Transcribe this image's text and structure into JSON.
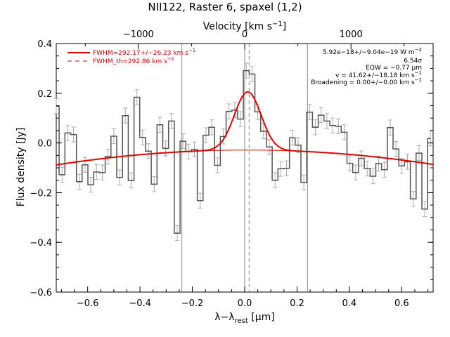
{
  "chart_data": {
    "type": "line",
    "title": "NII122, Raster 6, spaxel (1,2)",
    "xlabel_main": "λ−λ",
    "xlabel_sub": "rest",
    "xlabel_unit": " [μm]",
    "ylabel": "Flux density [Jy]",
    "top_axis_label_main": "Velocity [km s",
    "top_axis_label_sup": "−1",
    "top_axis_label_end": "]",
    "xlim": [
      -0.72,
      0.72
    ],
    "ylim": [
      -0.6,
      0.4
    ],
    "x_ticks": [
      {
        "v": -0.6,
        "label": "−0.6"
      },
      {
        "v": -0.4,
        "label": "−0.4"
      },
      {
        "v": -0.2,
        "label": "−0.2"
      },
      {
        "v": 0.0,
        "label": "0.0"
      },
      {
        "v": 0.2,
        "label": "0.2"
      },
      {
        "v": 0.4,
        "label": "0.4"
      },
      {
        "v": 0.6,
        "label": "0.6"
      }
    ],
    "y_ticks": [
      {
        "v": -0.6,
        "label": "−0.6"
      },
      {
        "v": -0.4,
        "label": "−0.4"
      },
      {
        "v": -0.2,
        "label": "−0.2"
      },
      {
        "v": 0.0,
        "label": "0.0"
      },
      {
        "v": 0.2,
        "label": "0.2"
      },
      {
        "v": 0.4,
        "label": "0.4"
      }
    ],
    "top_ticks": [
      {
        "v": -1000,
        "label": "−1000"
      },
      {
        "v": 0,
        "label": "0"
      },
      {
        "v": 1000,
        "label": "1000"
      }
    ],
    "velocity_per_um": 2462,
    "vertical_lines": [
      -0.24,
      0.0,
      0.24
    ],
    "line_center_dashed": 0.017,
    "spectrum": {
      "x": [
        -0.72,
        -0.698,
        -0.676,
        -0.654,
        -0.632,
        -0.61,
        -0.588,
        -0.566,
        -0.544,
        -0.522,
        -0.5,
        -0.478,
        -0.456,
        -0.434,
        -0.412,
        -0.39,
        -0.368,
        -0.346,
        -0.324,
        -0.302,
        -0.28,
        -0.258,
        -0.236,
        -0.214,
        -0.192,
        -0.17,
        -0.148,
        -0.126,
        -0.104,
        -0.082,
        -0.06,
        -0.038,
        -0.016,
        0.006,
        0.028,
        0.05,
        0.072,
        0.094,
        0.116,
        0.138,
        0.16,
        0.182,
        0.204,
        0.226,
        0.248,
        0.27,
        0.292,
        0.314,
        0.336,
        0.358,
        0.38,
        0.402,
        0.424,
        0.446,
        0.468,
        0.49,
        0.512,
        0.534,
        0.556,
        0.578,
        0.6,
        0.622,
        0.644,
        0.666,
        0.688,
        0.71
      ],
      "y": [
        0.148,
        -0.128,
        0.04,
        0.034,
        -0.156,
        -0.088,
        -0.168,
        -0.117,
        -0.119,
        -0.055,
        0.027,
        -0.139,
        0.11,
        -0.151,
        0.184,
        0.022,
        -0.033,
        -0.166,
        0.073,
        -0.022,
        0.088,
        -0.363,
        0.007,
        -0.035,
        -0.026,
        -0.232,
        0.031,
        0.063,
        -0.09,
        0.026,
        0.127,
        0.132,
        0.096,
        0.291,
        0.277,
        0.125,
        0.047,
        -0.016,
        -0.15,
        -0.104,
        -0.102,
        0.021,
        -0.009,
        -0.159,
        0.124,
        0.063,
        0.112,
        0.088,
        0.07,
        0.067,
        0.043,
        -0.082,
        -0.119,
        -0.062,
        -0.103,
        -0.134,
        -0.083,
        -0.108,
        0.062,
        -0.024,
        -0.092,
        -0.076,
        -0.225,
        -0.041,
        -0.266,
        0.018
      ],
      "err": 0.03
    },
    "fit_baseline": {
      "a": -0.0286,
      "b": 0.0015,
      "c": -0.1136
    },
    "fit_gaussian": {
      "amp": 0.234,
      "center": 0.0117,
      "sigma": 0.0508
    },
    "legend": [
      {
        "label": "FWHM=292.17+/−26.23 km s",
        "sup": "−1",
        "style": "solid"
      },
      {
        "label": "FWHM_th=292.86 km s",
        "sup": "−1",
        "style": "dashed"
      }
    ],
    "annotations": [
      {
        "text": "5.92e−18+/−9.04e−19 W m",
        "sup": "−2"
      },
      {
        "text": "6.54σ",
        "sup": ""
      },
      {
        "text": "EQW = −0.77 μm",
        "sup": ""
      },
      {
        "text": "v = 41.62+/−18.18 km s",
        "sup": "−1"
      },
      {
        "text": "Broadening = 0.00+/−0.00 km s",
        "sup": "−1"
      }
    ],
    "colors": {
      "spectrum": "#555555",
      "errorbar": "#aaaaaa",
      "fit": "#e00000",
      "vline": "#888888",
      "axes": "#000000"
    },
    "grid": false,
    "legend_position": "top-left"
  }
}
